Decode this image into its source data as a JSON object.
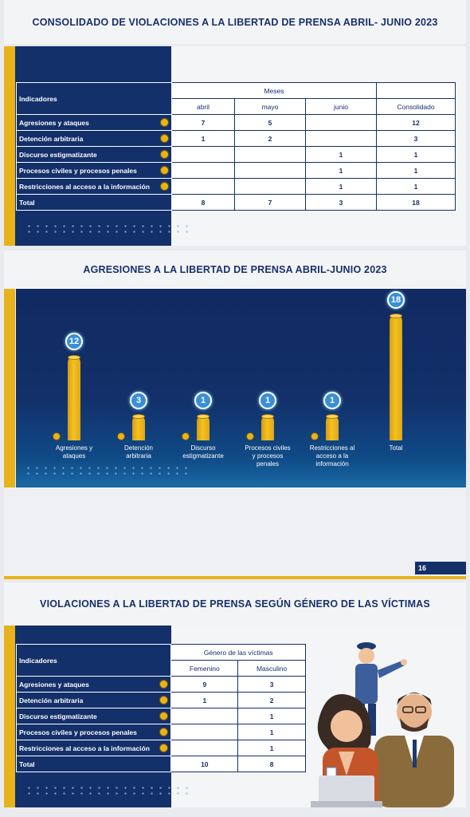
{
  "section1": {
    "title": "CONSOLIDADO DE VIOLACIONES A LA LIBERTAD DE PRENSA ABRIL- JUNIO 2023",
    "header": {
      "indicadores": "Indicadores",
      "meses": "Meses",
      "abril": "abril",
      "mayo": "mayo",
      "junio": "junio",
      "consolidado": "Consolidado"
    },
    "rows": [
      {
        "label": "Agresiones y ataques",
        "abril": "7",
        "mayo": "5",
        "junio": "",
        "consolidado": "12"
      },
      {
        "label": "Detención arbitraria",
        "abril": "1",
        "mayo": "2",
        "junio": "",
        "consolidado": "3"
      },
      {
        "label": "Discurso estigmatizante",
        "abril": "",
        "mayo": "",
        "junio": "1",
        "consolidado": "1"
      },
      {
        "label": "Procesos civiles y procesos penales",
        "abril": "",
        "mayo": "",
        "junio": "1",
        "consolidado": "1"
      },
      {
        "label": "Restricciones al acceso a la información",
        "abril": "",
        "mayo": "",
        "junio": "1",
        "consolidado": "1"
      },
      {
        "label": "Total",
        "abril": "8",
        "mayo": "7",
        "junio": "3",
        "consolidado": "18"
      }
    ]
  },
  "section2": {
    "title": "AGRESIONES A LA LIBERTAD DE PRENSA ABRIL-JUNIO 2023",
    "page_number": "16"
  },
  "chart_data": {
    "type": "bar",
    "title": "AGRESIONES A LA LIBERTAD DE PRENSA ABRIL-JUNIO 2023",
    "categories": [
      "Agresiones y ataques",
      "Detención arbitraria",
      "Discurso estigmatizante",
      "Procesos civiles y procesos penales",
      "Restricciones al acceso a la información",
      "Total"
    ],
    "values": [
      12,
      3,
      1,
      1,
      1,
      18
    ],
    "value_labels": [
      "12",
      "3",
      "1",
      "1",
      "1",
      "18"
    ],
    "category_labels": [
      [
        "Agresiones y",
        "ataques"
      ],
      [
        "Detención",
        "arbitraria"
      ],
      [
        "Discurso",
        "estigmatizante"
      ],
      [
        "Procesos civiles",
        "y procesos",
        "penales"
      ],
      [
        "Restricciones al",
        "acceso a la",
        "información"
      ],
      [
        "Total"
      ]
    ],
    "bar_color": "#f2bd1f",
    "badge_color": "#3a8fd6",
    "ylim": [
      0,
      18
    ]
  },
  "section3": {
    "title": "VIOLACIONES A LA LIBERTAD DE PRENSA SEGÚN GÉNERO DE LAS VÍCTIMAS",
    "header": {
      "indicadores": "Indicadores",
      "genero": "Género de las víctimas",
      "femenino": "Femenino",
      "masculino": "Masculino"
    },
    "rows": [
      {
        "label": "Agresiones y ataques",
        "femenino": "9",
        "masculino": "3"
      },
      {
        "label": "Detención arbitraria",
        "femenino": "1",
        "masculino": "2"
      },
      {
        "label": "Discurso estigmatizante",
        "femenino": "",
        "masculino": "1"
      },
      {
        "label": "Procesos civiles y procesos penales",
        "femenino": "",
        "masculino": "1"
      },
      {
        "label": "Restricciones al acceso a la información",
        "femenino": "",
        "masculino": "1"
      },
      {
        "label": "Total",
        "femenino": "10",
        "masculino": "8"
      }
    ]
  },
  "colors": {
    "navy": "#13306a",
    "gold": "#e7b21c",
    "accent_blue": "#3a8fd6"
  },
  "illustration": {
    "icon": "police-officer-and-journalists-illustration"
  }
}
